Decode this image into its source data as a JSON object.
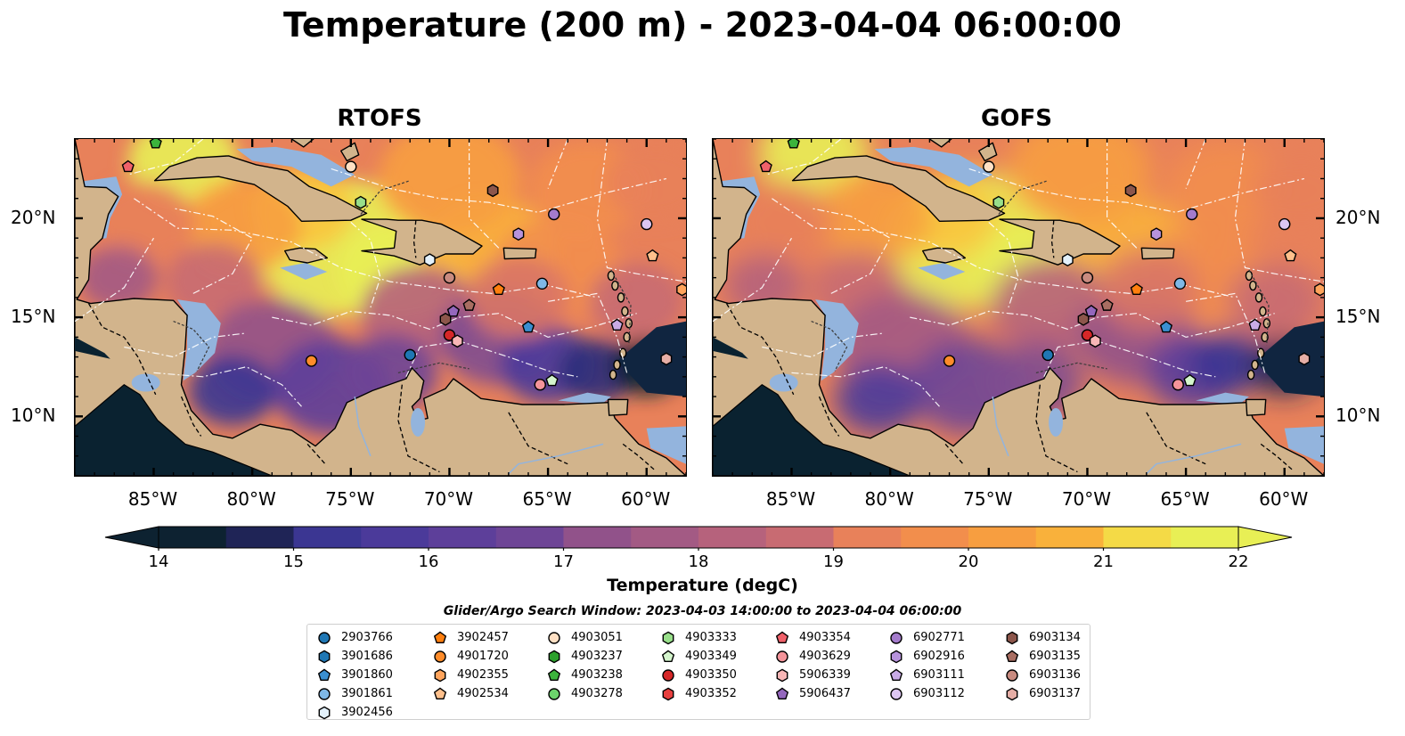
{
  "title": "Temperature (200 m) - 2023-04-04 06:00:00",
  "panels": [
    {
      "title": "RTOFS"
    },
    {
      "title": "GOFS"
    }
  ],
  "axes": {
    "lon_ticks": [
      "85°W",
      "80°W",
      "75°W",
      "70°W",
      "65°W",
      "60°W"
    ],
    "lon_values": [
      -85,
      -80,
      -75,
      -70,
      -65,
      -60
    ],
    "lat_ticks": [
      "20°N",
      "15°N",
      "10°N"
    ],
    "lat_values": [
      20,
      15,
      10
    ],
    "lon_range": [
      -89,
      -58
    ],
    "lat_range": [
      7,
      24
    ]
  },
  "colorbar": {
    "label": "Temperature (degC)",
    "ticks": [
      "14",
      "15",
      "16",
      "17",
      "18",
      "19",
      "20",
      "21",
      "22"
    ],
    "range": [
      14,
      22
    ],
    "colors": [
      "#0d2231",
      "#1f2456",
      "#2c2f7a",
      "#3b3692",
      "#4b3a9a",
      "#5d3f9a",
      "#6e4596",
      "#7f4c90",
      "#91528a",
      "#a35a84",
      "#b6627c",
      "#c86b72",
      "#d97666",
      "#e8815a",
      "#f28e4c",
      "#f79e40",
      "#f9b13b",
      "#f9c53e",
      "#f4da46",
      "#e8ef55"
    ]
  },
  "search_window": "Glider/Argo Search Window: 2023-04-03 14:00:00 to 2023-04-04 06:00:00",
  "legend": {
    "columns": [
      [
        {
          "id": "2903766",
          "marker": "circle",
          "color": "#1f77b4"
        },
        {
          "id": "3901686",
          "marker": "hexagon",
          "color": "#1f77b4"
        },
        {
          "id": "3901860",
          "marker": "pentagon",
          "color": "#3a8fd0"
        },
        {
          "id": "3901861",
          "marker": "circle",
          "color": "#7fb8e6"
        },
        {
          "id": "3902456",
          "marker": "hexagon",
          "color": "#e3f1fb"
        }
      ],
      [
        {
          "id": "3902457",
          "marker": "pentagon",
          "color": "#ff7f0e"
        },
        {
          "id": "4901720",
          "marker": "circle",
          "color": "#ff8c2a"
        },
        {
          "id": "4902355",
          "marker": "hexagon",
          "color": "#ffa45c"
        },
        {
          "id": "4902534",
          "marker": "pentagon",
          "color": "#ffc08c"
        }
      ],
      [
        {
          "id": "4903051",
          "marker": "circle",
          "color": "#ffe0c4"
        },
        {
          "id": "4903237",
          "marker": "hexagon",
          "color": "#2ca02c"
        },
        {
          "id": "4903238",
          "marker": "pentagon",
          "color": "#3cb43c"
        },
        {
          "id": "4903278",
          "marker": "circle",
          "color": "#6cd36c"
        }
      ],
      [
        {
          "id": "4903333",
          "marker": "hexagon",
          "color": "#98df8a"
        },
        {
          "id": "4903349",
          "marker": "pentagon",
          "color": "#d4f5cc"
        },
        {
          "id": "4903350",
          "marker": "circle",
          "color": "#d62728"
        },
        {
          "id": "4903352",
          "marker": "hexagon",
          "color": "#e8403f"
        }
      ],
      [
        {
          "id": "4903354",
          "marker": "pentagon",
          "color": "#f0616a"
        },
        {
          "id": "4903629",
          "marker": "circle",
          "color": "#f4949a"
        },
        {
          "id": "5906339",
          "marker": "hexagon",
          "color": "#f8b6b6"
        },
        {
          "id": "5906437",
          "marker": "pentagon",
          "color": "#9467bd"
        }
      ],
      [
        {
          "id": "6902771",
          "marker": "circle",
          "color": "#a47bcc"
        },
        {
          "id": "6902916",
          "marker": "hexagon",
          "color": "#b793dc"
        },
        {
          "id": "6903111",
          "marker": "pentagon",
          "color": "#c9abe6"
        },
        {
          "id": "6903112",
          "marker": "circle",
          "color": "#dcc6f2"
        }
      ],
      [
        {
          "id": "6903134",
          "marker": "hexagon",
          "color": "#8c564b"
        },
        {
          "id": "6903135",
          "marker": "pentagon",
          "color": "#a96e62"
        },
        {
          "id": "6903136",
          "marker": "circle",
          "color": "#c98b80"
        },
        {
          "id": "6903137",
          "marker": "hexagon",
          "color": "#e6aea6"
        }
      ]
    ]
  },
  "floats": [
    {
      "id": "4903354",
      "lon": -86.3,
      "lat": 22.6
    },
    {
      "id": "4903051",
      "lon": -75.0,
      "lat": 22.6
    },
    {
      "id": "4903333",
      "lon": -74.5,
      "lat": 20.8
    },
    {
      "id": "6903134",
      "lon": -67.8,
      "lat": 21.4
    },
    {
      "id": "6902771",
      "lon": -64.7,
      "lat": 20.2
    },
    {
      "id": "6902916",
      "lon": -66.5,
      "lat": 19.2
    },
    {
      "id": "6903112",
      "lon": -60.0,
      "lat": 19.7
    },
    {
      "id": "4902534",
      "lon": -59.7,
      "lat": 18.1
    },
    {
      "id": "3902456",
      "lon": -71.0,
      "lat": 17.9
    },
    {
      "id": "6903136",
      "lon": -70.0,
      "lat": 17.0
    },
    {
      "id": "3901861",
      "lon": -65.3,
      "lat": 16.7
    },
    {
      "id": "3902457",
      "lon": -67.5,
      "lat": 16.4
    },
    {
      "id": "4902355",
      "lon": -58.2,
      "lat": 16.4
    },
    {
      "id": "6903135",
      "lon": -69.0,
      "lat": 15.6
    },
    {
      "id": "5906437",
      "lon": -69.8,
      "lat": 15.3
    },
    {
      "id": "6903134",
      "lon": -70.2,
      "lat": 14.9
    },
    {
      "id": "3901860",
      "lon": -66.0,
      "lat": 14.5
    },
    {
      "id": "6903111",
      "lon": -61.5,
      "lat": 14.6
    },
    {
      "id": "4903350",
      "lon": -70.0,
      "lat": 14.1
    },
    {
      "id": "5906339",
      "lon": -69.6,
      "lat": 13.8
    },
    {
      "id": "2903766",
      "lon": -72.0,
      "lat": 13.1
    },
    {
      "id": "4901720",
      "lon": -77.0,
      "lat": 12.8
    },
    {
      "id": "6903137",
      "lon": -59.0,
      "lat": 12.9
    },
    {
      "id": "4903349",
      "lon": -64.8,
      "lat": 11.8
    },
    {
      "id": "4903629",
      "lon": -65.4,
      "lat": 11.6
    },
    {
      "id": "4903238",
      "lon": -84.9,
      "lat": 23.8
    }
  ]
}
